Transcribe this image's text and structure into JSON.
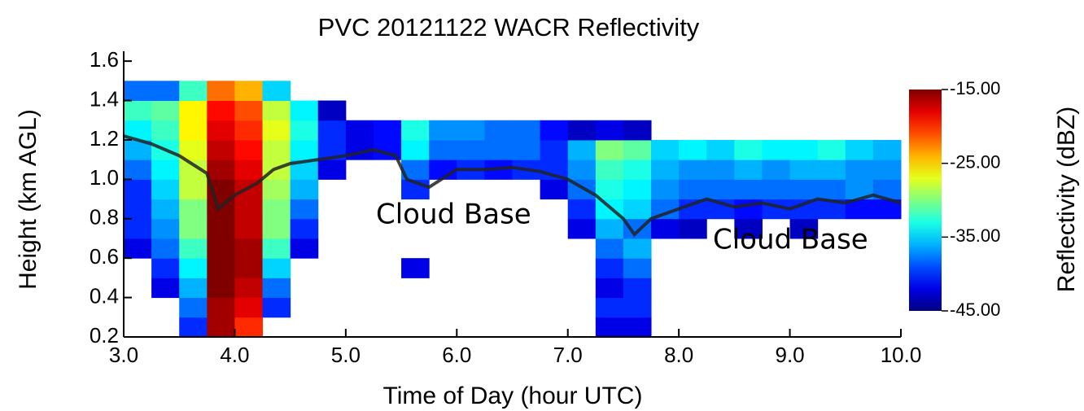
{
  "chart_data": {
    "type": "heatmap",
    "title": "PVC 20121122 WACR Reflectivity",
    "x_label": "Time of Day (hour UTC)",
    "y_label": "Height (km AGL)",
    "xlim": [
      3,
      10
    ],
    "ylim": [
      0.2,
      1.65
    ],
    "xticks": [
      {
        "value": 3,
        "label": "3.0"
      },
      {
        "value": 4,
        "label": "4.0"
      },
      {
        "value": 5,
        "label": "5.0"
      },
      {
        "value": 6,
        "label": "6.0"
      },
      {
        "value": 7,
        "label": "7.0"
      },
      {
        "value": 8,
        "label": "8.0"
      },
      {
        "value": 9,
        "label": "9.0"
      },
      {
        "value": 10,
        "label": "10.0"
      }
    ],
    "yticks": [
      0.2,
      0.4,
      0.6,
      0.8,
      {
        "value": 1,
        "label": "1.0"
      },
      1.2,
      1.4,
      1.6
    ],
    "colormap": "jet",
    "colorbar": {
      "label": "Reflectivity (dBZ)",
      "lim": [
        -45,
        -15
      ],
      "ticks": [
        {
          "value": -15,
          "label": "-15.00"
        },
        {
          "value": -25,
          "label": "-25.00"
        },
        {
          "value": -35,
          "label": "-35.00"
        },
        {
          "value": -45,
          "label": "-45.00"
        }
      ]
    },
    "x": [
      3.125,
      3.375,
      3.625,
      3.875,
      4.125,
      4.375,
      4.625,
      4.875,
      5.125,
      5.375,
      5.625,
      5.875,
      6.125,
      6.375,
      6.625,
      6.875,
      7.125,
      7.375,
      7.625,
      7.875,
      8.125,
      8.375,
      8.625,
      8.875,
      9.125,
      9.375,
      9.625,
      9.875
    ],
    "y": [
      0.25,
      0.35,
      0.45,
      0.55,
      0.65,
      0.75,
      0.85,
      0.95,
      1.05,
      1.15,
      1.25,
      1.35,
      1.45
    ],
    "z": [
      [
        null,
        null,
        -40,
        -16,
        -20,
        null,
        null,
        null,
        null,
        null,
        null,
        null,
        null,
        null,
        null,
        null,
        null,
        -42,
        -42,
        null,
        null,
        null,
        null,
        null,
        null,
        null,
        null,
        null
      ],
      [
        null,
        null,
        -38,
        -16,
        -18,
        -40,
        null,
        null,
        null,
        null,
        null,
        null,
        null,
        null,
        null,
        null,
        null,
        -40,
        -40,
        null,
        null,
        null,
        null,
        null,
        null,
        null,
        null,
        null
      ],
      [
        null,
        -42,
        -36,
        -15,
        -17,
        -38,
        null,
        null,
        null,
        null,
        null,
        null,
        null,
        null,
        null,
        null,
        null,
        -42,
        -40,
        null,
        null,
        null,
        null,
        null,
        null,
        null,
        null,
        null
      ],
      [
        null,
        -40,
        -34,
        -15,
        -16,
        -35,
        null,
        null,
        null,
        null,
        -42,
        null,
        null,
        null,
        null,
        null,
        null,
        -40,
        -38,
        null,
        null,
        null,
        null,
        null,
        null,
        null,
        null,
        null
      ],
      [
        -42,
        -38,
        -32,
        -15,
        -16,
        -32,
        -42,
        null,
        null,
        null,
        null,
        null,
        null,
        null,
        null,
        null,
        null,
        -38,
        -36,
        null,
        null,
        null,
        null,
        null,
        null,
        null,
        null,
        null
      ],
      [
        -40,
        -37,
        -30,
        -15,
        -17,
        -30,
        -40,
        null,
        null,
        null,
        null,
        null,
        null,
        null,
        null,
        null,
        -42,
        -36,
        -38,
        -42,
        -43,
        null,
        -43,
        null,
        -43,
        null,
        null,
        null
      ],
      [
        -40,
        -36,
        -30,
        -15,
        -17,
        -30,
        -38,
        null,
        null,
        null,
        null,
        null,
        null,
        null,
        null,
        null,
        -40,
        -34,
        -35,
        -38,
        -40,
        -40,
        -41,
        -40,
        -40,
        -40,
        -41,
        -41
      ],
      [
        -40,
        -35,
        -28,
        -15,
        -17,
        -29,
        -36,
        null,
        null,
        null,
        -40,
        null,
        null,
        null,
        null,
        -42,
        -38,
        -33,
        -34,
        -37,
        -38,
        -38,
        -38,
        -38,
        -38,
        -38,
        -37,
        -38
      ],
      [
        -38,
        -34,
        -28,
        -16,
        -18,
        -28,
        -35,
        -42,
        null,
        null,
        -38,
        -41,
        -40,
        -41,
        -40,
        -40,
        -37,
        -32,
        -33,
        -36,
        -37,
        -37,
        -36,
        -37,
        -36,
        -36,
        -37,
        -37
      ],
      [
        -36,
        -33,
        -27,
        -17,
        -19,
        -28,
        -34,
        -40,
        -42,
        -41,
        -34,
        -38,
        -38,
        -38,
        -38,
        -40,
        -36,
        -30,
        -31,
        -35,
        -34,
        -35,
        -33,
        -34,
        -34,
        -33,
        -35,
        -36
      ],
      [
        -34,
        -32,
        -26,
        -18,
        -20,
        -27,
        -33,
        -40,
        -42,
        -41,
        -33,
        -37,
        -37,
        -38,
        -38,
        -41,
        -43,
        -42,
        -43,
        null,
        null,
        null,
        null,
        null,
        null,
        null,
        null,
        null
      ],
      [
        -32,
        -31,
        -26,
        -19,
        -21,
        -28,
        -34,
        -43,
        null,
        null,
        null,
        null,
        null,
        null,
        null,
        null,
        null,
        null,
        null,
        null,
        null,
        null,
        null,
        null,
        null,
        null,
        null,
        null
      ],
      [
        -38,
        -38,
        -32,
        -22,
        -24,
        -35,
        null,
        null,
        null,
        null,
        null,
        null,
        null,
        null,
        null,
        null,
        null,
        null,
        null,
        null,
        null,
        null,
        null,
        null,
        null,
        null,
        null,
        null
      ]
    ],
    "cloud_base": {
      "color": "#222222",
      "x": [
        3.0,
        3.25,
        3.5,
        3.75,
        3.85,
        4.0,
        4.2,
        4.35,
        4.5,
        4.75,
        5.0,
        5.25,
        5.45,
        5.55,
        5.75,
        6.0,
        6.25,
        6.5,
        6.75,
        7.0,
        7.25,
        7.5,
        7.6,
        7.75,
        8.0,
        8.25,
        8.5,
        8.75,
        9.0,
        9.25,
        9.5,
        9.75,
        10.0
      ],
      "values": [
        1.22,
        1.18,
        1.12,
        1.03,
        0.85,
        0.92,
        0.98,
        1.05,
        1.08,
        1.1,
        1.12,
        1.15,
        1.12,
        1.0,
        0.96,
        1.05,
        1.05,
        1.06,
        1.04,
        1.0,
        0.92,
        0.8,
        0.72,
        0.8,
        0.85,
        0.9,
        0.86,
        0.88,
        0.85,
        0.9,
        0.88,
        0.92,
        0.88
      ]
    },
    "annotations": [
      "Cloud Base",
      "Cloud Base"
    ]
  }
}
